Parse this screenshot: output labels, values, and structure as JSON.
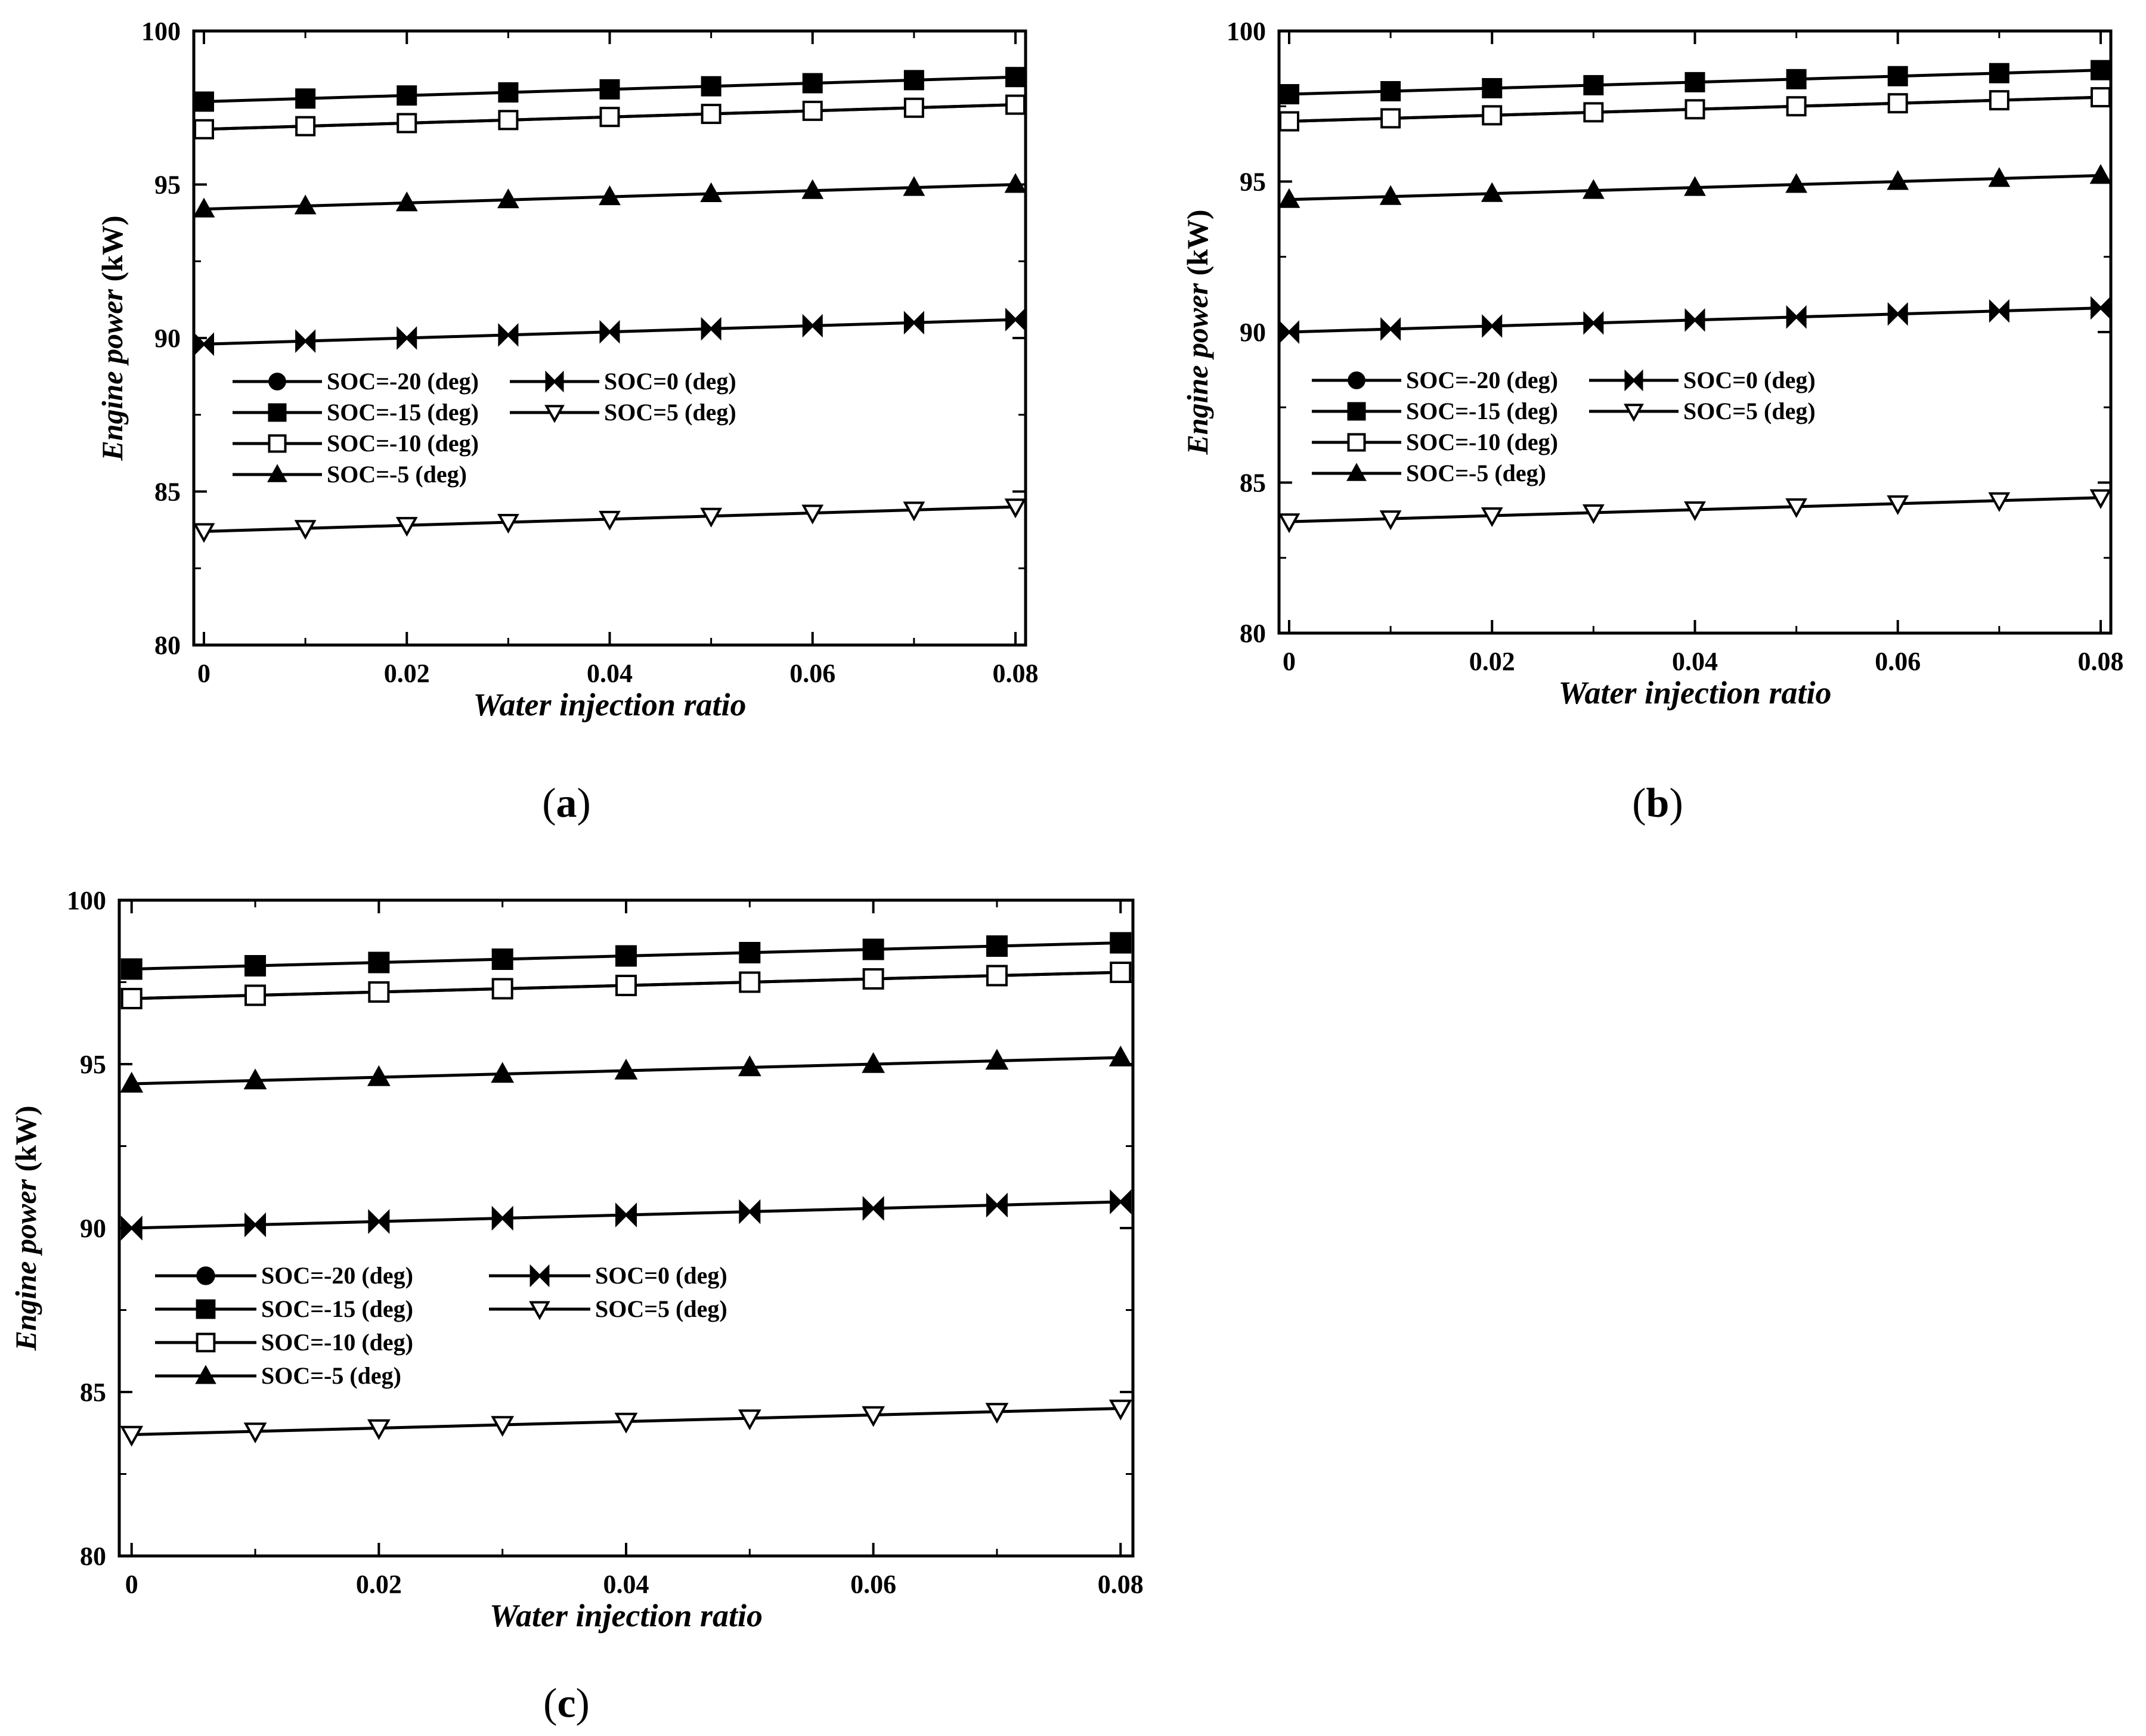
{
  "chart_data": [
    {
      "panel": "(a)",
      "panel_letter": "a",
      "type": "line",
      "xlabel": "Water injection ratio",
      "ylabel": "Engine power",
      "ylabel_unit": "(kW)",
      "x": [
        0,
        0.01,
        0.02,
        0.03,
        0.04,
        0.05,
        0.06,
        0.07,
        0.08
      ],
      "xlim": [
        -0.001,
        0.081
      ],
      "ylim": [
        80,
        100
      ],
      "x_ticks": [
        0,
        0.02,
        0.04,
        0.06,
        0.08
      ],
      "x_tick_labels": [
        "0",
        "0.02",
        "0.04",
        "0.06",
        "0.08"
      ],
      "y_ticks": [
        80,
        85,
        90,
        95,
        100
      ],
      "y_tick_labels": [
        "80",
        "85",
        "90",
        "95",
        "100"
      ],
      "grid": false,
      "legend_position": "middle-left",
      "series": [
        {
          "name": "SOC=-20 (deg)",
          "marker": "circle-filled",
          "values": [
            96.8,
            96.9,
            97.0,
            97.1,
            97.2,
            97.3,
            97.4,
            97.5,
            97.6
          ]
        },
        {
          "name": "SOC=-15 (deg)",
          "marker": "square-filled",
          "values": [
            97.7,
            97.8,
            97.9,
            98.0,
            98.1,
            98.2,
            98.3,
            98.4,
            98.5
          ]
        },
        {
          "name": "SOC=-10 (deg)",
          "marker": "square-open",
          "values": [
            96.8,
            96.9,
            97.0,
            97.1,
            97.2,
            97.3,
            97.4,
            97.5,
            97.6
          ]
        },
        {
          "name": "SOC=-5 (deg)",
          "marker": "triangle-up-filled",
          "values": [
            94.2,
            94.3,
            94.4,
            94.5,
            94.6,
            94.7,
            94.8,
            94.9,
            95.0
          ]
        },
        {
          "name": "SOC=0 (deg)",
          "marker": "bowtie-filled",
          "values": [
            89.8,
            89.9,
            90.0,
            90.1,
            90.2,
            90.3,
            90.4,
            90.5,
            90.6
          ]
        },
        {
          "name": "SOC=5 (deg)",
          "marker": "triangle-down-open",
          "values": [
            83.7,
            83.8,
            83.9,
            84.0,
            84.1,
            84.2,
            84.3,
            84.4,
            84.5
          ]
        }
      ]
    },
    {
      "panel": "(b)",
      "panel_letter": "b",
      "type": "line",
      "xlabel": "Water injection ratio",
      "ylabel": "Engine power",
      "ylabel_unit": "(kW)",
      "x": [
        0,
        0.01,
        0.02,
        0.03,
        0.04,
        0.05,
        0.06,
        0.07,
        0.08
      ],
      "xlim": [
        -0.001,
        0.081
      ],
      "ylim": [
        80,
        100
      ],
      "x_ticks": [
        0,
        0.02,
        0.04,
        0.06,
        0.08
      ],
      "x_tick_labels": [
        "0",
        "0.02",
        "0.04",
        "0.06",
        "0.08"
      ],
      "y_ticks": [
        80,
        85,
        90,
        95,
        100
      ],
      "y_tick_labels": [
        "80",
        "85",
        "90",
        "95",
        "100"
      ],
      "grid": false,
      "legend_position": "middle-left",
      "series": [
        {
          "name": "SOC=-20 (deg)",
          "marker": "circle-filled",
          "values": [
            97.0,
            97.1,
            97.2,
            97.3,
            97.4,
            97.5,
            97.6,
            97.7,
            97.8
          ]
        },
        {
          "name": "SOC=-15 (deg)",
          "marker": "square-filled",
          "values": [
            97.9,
            98.0,
            98.1,
            98.2,
            98.3,
            98.4,
            98.5,
            98.6,
            98.7
          ]
        },
        {
          "name": "SOC=-10 (deg)",
          "marker": "square-open",
          "values": [
            97.0,
            97.1,
            97.2,
            97.3,
            97.4,
            97.5,
            97.6,
            97.7,
            97.8
          ]
        },
        {
          "name": "SOC=-5 (deg)",
          "marker": "triangle-up-filled",
          "values": [
            94.4,
            94.5,
            94.6,
            94.7,
            94.8,
            94.9,
            95.0,
            95.1,
            95.2
          ]
        },
        {
          "name": "SOC=0 (deg)",
          "marker": "bowtie-filled",
          "values": [
            90.0,
            90.1,
            90.2,
            90.3,
            90.4,
            90.5,
            90.6,
            90.7,
            90.8
          ]
        },
        {
          "name": "SOC=5 (deg)",
          "marker": "triangle-down-open",
          "values": [
            83.7,
            83.8,
            83.9,
            84.0,
            84.1,
            84.2,
            84.3,
            84.4,
            84.5
          ]
        }
      ]
    },
    {
      "panel": "(c)",
      "panel_letter": "c",
      "type": "line",
      "xlabel": "Water injection ratio",
      "ylabel": "Engine power",
      "ylabel_unit": "(kW)",
      "x": [
        0,
        0.01,
        0.02,
        0.03,
        0.04,
        0.05,
        0.06,
        0.07,
        0.08
      ],
      "xlim": [
        -0.001,
        0.081
      ],
      "ylim": [
        80,
        100
      ],
      "x_ticks": [
        0,
        0.02,
        0.04,
        0.06,
        0.08
      ],
      "x_tick_labels": [
        "0",
        "0.02",
        "0.04",
        "0.06",
        "0.08"
      ],
      "y_ticks": [
        80,
        85,
        90,
        95,
        100
      ],
      "y_tick_labels": [
        "80",
        "85",
        "90",
        "95",
        "100"
      ],
      "grid": false,
      "legend_position": "lower-left",
      "series": [
        {
          "name": "SOC=-20 (deg)",
          "marker": "circle-filled",
          "values": [
            97.0,
            97.1,
            97.2,
            97.3,
            97.4,
            97.5,
            97.6,
            97.7,
            97.8
          ]
        },
        {
          "name": "SOC=-15 (deg)",
          "marker": "square-filled",
          "values": [
            97.9,
            98.0,
            98.1,
            98.2,
            98.3,
            98.4,
            98.5,
            98.6,
            98.7
          ]
        },
        {
          "name": "SOC=-10 (deg)",
          "marker": "square-open",
          "values": [
            97.0,
            97.1,
            97.2,
            97.3,
            97.4,
            97.5,
            97.6,
            97.7,
            97.8
          ]
        },
        {
          "name": "SOC=-5 (deg)",
          "marker": "triangle-up-filled",
          "values": [
            94.4,
            94.5,
            94.6,
            94.7,
            94.8,
            94.9,
            95.0,
            95.1,
            95.2
          ]
        },
        {
          "name": "SOC=0 (deg)",
          "marker": "bowtie-filled",
          "values": [
            90.0,
            90.1,
            90.2,
            90.3,
            90.4,
            90.5,
            90.6,
            90.7,
            90.8
          ]
        },
        {
          "name": "SOC=5 (deg)",
          "marker": "triangle-down-open",
          "values": [
            83.7,
            83.8,
            83.9,
            84.0,
            84.1,
            84.2,
            84.3,
            84.4,
            84.5
          ]
        }
      ]
    }
  ]
}
